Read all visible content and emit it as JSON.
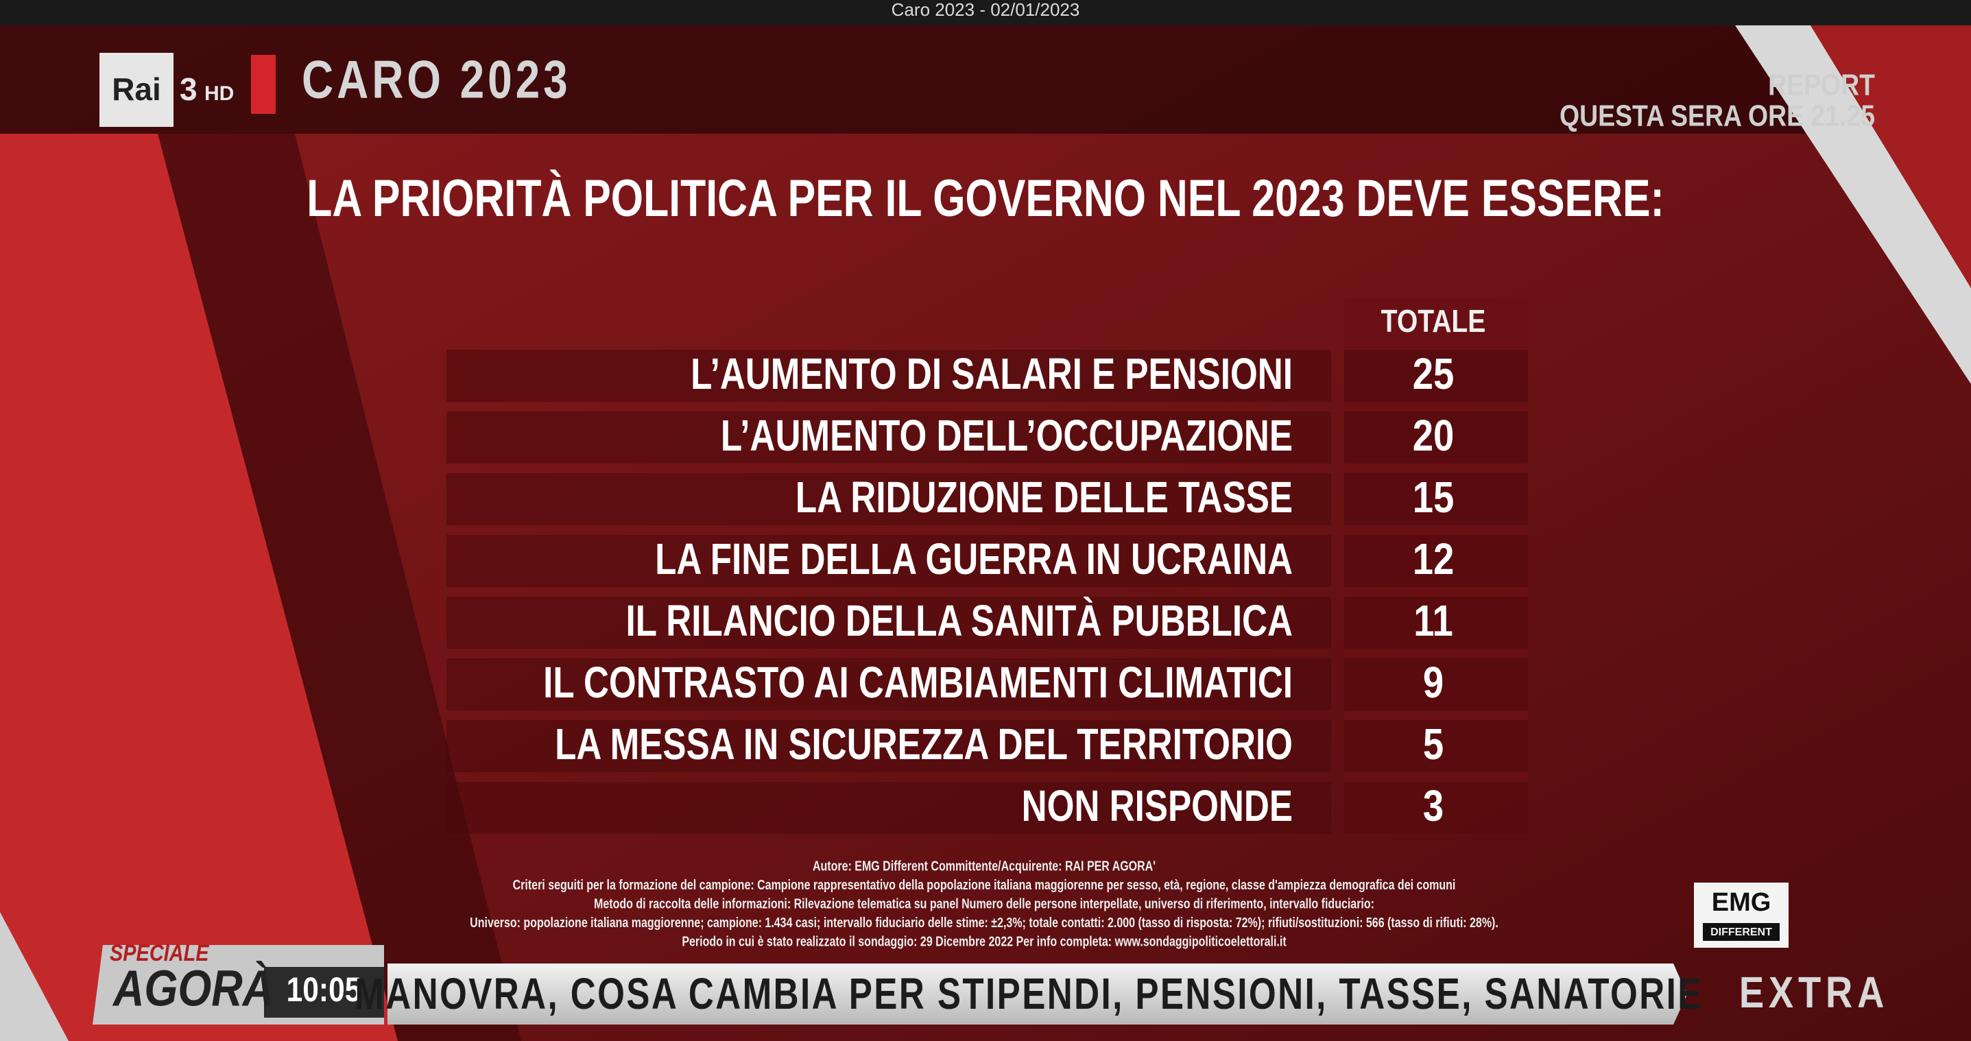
{
  "window_title": "Caro 2023 - 02/01/2023",
  "header": {
    "logo_rai": "Rai",
    "logo_channel": "3",
    "logo_hd": "HD",
    "program_title": "CARO 2023"
  },
  "promo": {
    "line1": "REPORT",
    "line2": "QUESTA SERA ORE 21.25"
  },
  "table": {
    "title": "LA PRIORITÀ POLITICA PER IL GOVERNO NEL 2023 DEVE ESSERE:",
    "column_header": "TOTALE",
    "rows": [
      {
        "label": "L’AUMENTO DI SALARI E PENSIONI",
        "value": 25
      },
      {
        "label": "L’AUMENTO DELL’OCCUPAZIONE",
        "value": 20
      },
      {
        "label": "LA RIDUZIONE DELLE TASSE",
        "value": 15
      },
      {
        "label": "LA FINE DELLA GUERRA IN UCRAINA",
        "value": 12
      },
      {
        "label": "IL RILANCIO DELLA SANITÀ PUBBLICA",
        "value": 11
      },
      {
        "label": "IL CONTRASTO AI CAMBIAMENTI CLIMATICI",
        "value": 9
      },
      {
        "label": "LA MESSA IN SICUREZZA DEL TERRITORIO",
        "value": 5
      },
      {
        "label": "NON RISPONDE",
        "value": 3
      }
    ]
  },
  "footnote": [
    "Autore: EMG Different Committente/Acquirente: RAI PER AGORA'",
    "Criteri seguiti per la formazione del campione: Campione rappresentativo della popolazione italiana maggiorenne per sesso, età, regione, classe d'ampiezza demografica dei comuni",
    "Metodo di raccolta delle informazioni: Rilevazione telematica su panel Numero delle persone interpellate, universo di riferimento, intervallo fiduciario:",
    "Universo: popolazione italiana maggiorenne; campione: 1.434 casi; intervallo fiduciario delle stime: ±2,3%; totale contatti: 2.000 (tasso di risposta: 72%); rifiuti/sostituzioni: 566 (tasso di rifiuti: 28%).",
    "Periodo in cui è stato realizzato il sondaggio: 29 Dicembre 2022  Per info completa: www.sondaggipoliticoelettorali.it"
  ],
  "emg_logo": {
    "top": "EMG",
    "bottom": "DIFFERENT"
  },
  "ticker": {
    "show_top": "SPECIALE",
    "show_name": "AGORÀ",
    "time": "10:05",
    "headline": "MANOVRA, COSA CAMBIA PER STIPENDI, PENSIONI, TASSE, SANATORIE",
    "tag": "EXTRA"
  }
}
